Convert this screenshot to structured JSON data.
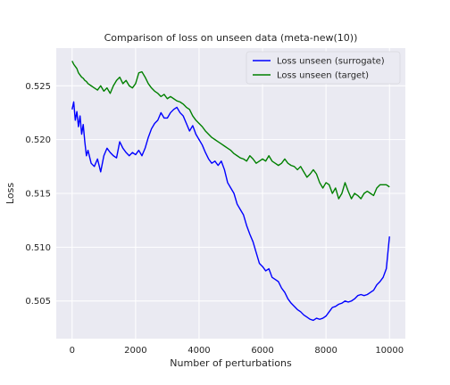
{
  "chart_data": {
    "type": "line",
    "title": "Comparison of loss on unseen data (meta-new(10))",
    "xlabel": "Number of perturbations",
    "ylabel": "Loss",
    "xlim": [
      -500,
      10500
    ],
    "ylim": [
      0.5015,
      0.5285
    ],
    "x_ticks": [
      0,
      2000,
      4000,
      6000,
      8000,
      10000
    ],
    "x_tick_labels": [
      "0",
      "2000",
      "4000",
      "6000",
      "8000",
      "10000"
    ],
    "y_ticks": [
      0.505,
      0.51,
      0.515,
      0.52,
      0.525
    ],
    "y_tick_labels": [
      "0.505",
      "0.510",
      "0.515",
      "0.520",
      "0.525"
    ],
    "grid": true,
    "legend_position": "top-right",
    "series": [
      {
        "name": "Loss unseen (surrogate)",
        "color": "#0000ff",
        "x": [
          0,
          50,
          100,
          150,
          200,
          250,
          300,
          350,
          400,
          450,
          500,
          600,
          700,
          800,
          900,
          1000,
          1100,
          1200,
          1300,
          1400,
          1500,
          1600,
          1700,
          1800,
          1900,
          2000,
          2100,
          2200,
          2300,
          2400,
          2500,
          2600,
          2700,
          2800,
          2900,
          3000,
          3100,
          3200,
          3300,
          3400,
          3500,
          3600,
          3700,
          3800,
          3900,
          4000,
          4100,
          4200,
          4300,
          4400,
          4500,
          4600,
          4700,
          4800,
          4900,
          5000,
          5100,
          5200,
          5300,
          5400,
          5500,
          5600,
          5700,
          5800,
          5900,
          6000,
          6100,
          6200,
          6300,
          6400,
          6500,
          6600,
          6700,
          6800,
          6900,
          7000,
          7100,
          7200,
          7300,
          7400,
          7500,
          7600,
          7700,
          7800,
          7900,
          8000,
          8100,
          8200,
          8300,
          8400,
          8500,
          8600,
          8700,
          8800,
          8900,
          9000,
          9100,
          9200,
          9300,
          9400,
          9500,
          9600,
          9700,
          9800,
          9900,
          10000
        ],
        "values": [
          0.5228,
          0.5235,
          0.5218,
          0.5226,
          0.5212,
          0.5222,
          0.5205,
          0.5214,
          0.5198,
          0.5185,
          0.519,
          0.5178,
          0.5175,
          0.5182,
          0.517,
          0.5185,
          0.5192,
          0.5188,
          0.5185,
          0.5183,
          0.5198,
          0.5192,
          0.5188,
          0.5185,
          0.5188,
          0.5186,
          0.519,
          0.5185,
          0.5192,
          0.5202,
          0.521,
          0.5215,
          0.5218,
          0.5225,
          0.522,
          0.522,
          0.5225,
          0.5228,
          0.523,
          0.5225,
          0.5222,
          0.5215,
          0.5208,
          0.5213,
          0.5205,
          0.52,
          0.5195,
          0.5188,
          0.5182,
          0.5178,
          0.518,
          0.5176,
          0.518,
          0.5172,
          0.516,
          0.5155,
          0.515,
          0.514,
          0.5135,
          0.513,
          0.512,
          0.5112,
          0.5105,
          0.5095,
          0.5085,
          0.5082,
          0.5078,
          0.508,
          0.5072,
          0.507,
          0.5068,
          0.5062,
          0.5058,
          0.5052,
          0.5048,
          0.5045,
          0.5042,
          0.504,
          0.5037,
          0.5035,
          0.5033,
          0.5032,
          0.5034,
          0.5033,
          0.5034,
          0.5036,
          0.504,
          0.5044,
          0.5045,
          0.5047,
          0.5048,
          0.505,
          0.5049,
          0.505,
          0.5052,
          0.5055,
          0.5056,
          0.5055,
          0.5056,
          0.5058,
          0.506,
          0.5065,
          0.5068,
          0.5072,
          0.508,
          0.511
        ]
      },
      {
        "name": "Loss unseen (target)",
        "color": "#008000",
        "x": [
          0,
          50,
          100,
          150,
          200,
          250,
          300,
          350,
          400,
          450,
          500,
          600,
          700,
          800,
          900,
          1000,
          1100,
          1200,
          1300,
          1400,
          1500,
          1600,
          1700,
          1800,
          1900,
          2000,
          2100,
          2200,
          2300,
          2400,
          2500,
          2600,
          2700,
          2800,
          2900,
          3000,
          3100,
          3200,
          3300,
          3400,
          3500,
          3600,
          3700,
          3800,
          3900,
          4000,
          4100,
          4200,
          4300,
          4400,
          4500,
          4600,
          4700,
          4800,
          4900,
          5000,
          5100,
          5200,
          5300,
          5400,
          5500,
          5600,
          5700,
          5800,
          5900,
          6000,
          6100,
          6200,
          6300,
          6400,
          6500,
          6600,
          6700,
          6800,
          6900,
          7000,
          7100,
          7200,
          7300,
          7400,
          7500,
          7600,
          7700,
          7800,
          7900,
          8000,
          8100,
          8200,
          8300,
          8400,
          8500,
          8600,
          8700,
          8800,
          8900,
          9000,
          9100,
          9200,
          9300,
          9400,
          9500,
          9600,
          9700,
          9800,
          9900,
          10000
        ],
        "values": [
          0.5273,
          0.527,
          0.5268,
          0.5266,
          0.5262,
          0.526,
          0.5258,
          0.5257,
          0.5255,
          0.5254,
          0.5252,
          0.525,
          0.5248,
          0.5246,
          0.525,
          0.5245,
          0.5248,
          0.5243,
          0.525,
          0.5255,
          0.5258,
          0.5252,
          0.5255,
          0.525,
          0.5248,
          0.5252,
          0.5262,
          0.5263,
          0.5258,
          0.5252,
          0.5248,
          0.5245,
          0.5243,
          0.524,
          0.5242,
          0.5238,
          0.524,
          0.5238,
          0.5236,
          0.5235,
          0.5233,
          0.523,
          0.5228,
          0.5222,
          0.5218,
          0.5215,
          0.5212,
          0.5208,
          0.5205,
          0.5202,
          0.52,
          0.5198,
          0.5196,
          0.5194,
          0.5192,
          0.519,
          0.5187,
          0.5185,
          0.5183,
          0.5182,
          0.518,
          0.5185,
          0.5182,
          0.5178,
          0.518,
          0.5182,
          0.518,
          0.5185,
          0.518,
          0.5178,
          0.5176,
          0.5178,
          0.5182,
          0.5178,
          0.5176,
          0.5175,
          0.5172,
          0.5175,
          0.517,
          0.5165,
          0.5168,
          0.5172,
          0.5168,
          0.516,
          0.5155,
          0.516,
          0.5158,
          0.515,
          0.5155,
          0.5145,
          0.515,
          0.516,
          0.5152,
          0.5145,
          0.515,
          0.5148,
          0.5145,
          0.515,
          0.5152,
          0.515,
          0.5148,
          0.5155,
          0.5158,
          0.5158,
          0.5158,
          0.5156
        ]
      }
    ]
  }
}
